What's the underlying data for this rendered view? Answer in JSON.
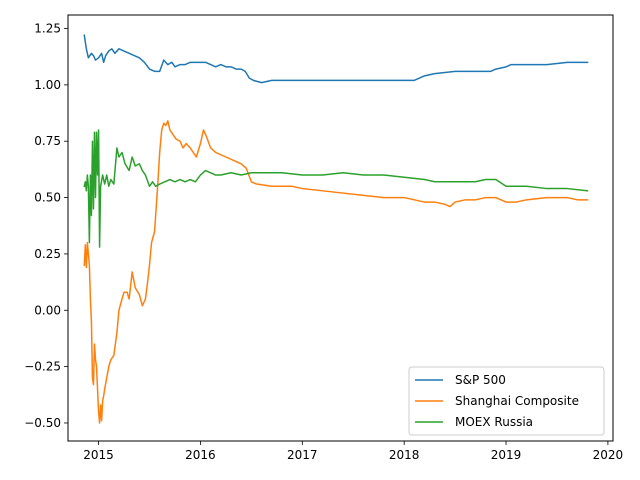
{
  "chart_data": {
    "type": "line",
    "title": "",
    "xlabel": "",
    "ylabel": "",
    "xlim": [
      2014.7,
      2020.05
    ],
    "ylim": [
      -0.58,
      1.31
    ],
    "x_ticks": [
      2015,
      2016,
      2017,
      2018,
      2019,
      2020
    ],
    "x_tick_labels": [
      "2015",
      "2016",
      "2017",
      "2018",
      "2019",
      "2020"
    ],
    "y_ticks": [
      -0.5,
      -0.25,
      0.0,
      0.25,
      0.5,
      0.75,
      1.0,
      1.25
    ],
    "y_tick_labels": [
      "−0.50",
      "−0.25",
      "0.00",
      "0.25",
      "0.50",
      "0.75",
      "1.00",
      "1.25"
    ],
    "grid": false,
    "legend_position": "lower-right",
    "series": [
      {
        "name": "S&P 500",
        "color": "#1f77b4",
        "points": [
          [
            2014.86,
            1.22
          ],
          [
            2014.88,
            1.16
          ],
          [
            2014.9,
            1.12
          ],
          [
            2014.93,
            1.14
          ],
          [
            2014.95,
            1.13
          ],
          [
            2014.97,
            1.11
          ],
          [
            2015.0,
            1.12
          ],
          [
            2015.03,
            1.14
          ],
          [
            2015.05,
            1.1
          ],
          [
            2015.07,
            1.13
          ],
          [
            2015.1,
            1.15
          ],
          [
            2015.13,
            1.16
          ],
          [
            2015.16,
            1.14
          ],
          [
            2015.2,
            1.16
          ],
          [
            2015.25,
            1.15
          ],
          [
            2015.3,
            1.14
          ],
          [
            2015.35,
            1.13
          ],
          [
            2015.4,
            1.12
          ],
          [
            2015.45,
            1.1
          ],
          [
            2015.5,
            1.07
          ],
          [
            2015.55,
            1.06
          ],
          [
            2015.6,
            1.06
          ],
          [
            2015.64,
            1.11
          ],
          [
            2015.68,
            1.09
          ],
          [
            2015.72,
            1.1
          ],
          [
            2015.75,
            1.08
          ],
          [
            2015.8,
            1.09
          ],
          [
            2015.85,
            1.09
          ],
          [
            2015.9,
            1.1
          ],
          [
            2015.95,
            1.1
          ],
          [
            2016.0,
            1.1
          ],
          [
            2016.05,
            1.1
          ],
          [
            2016.1,
            1.09
          ],
          [
            2016.15,
            1.08
          ],
          [
            2016.2,
            1.09
          ],
          [
            2016.25,
            1.08
          ],
          [
            2016.3,
            1.08
          ],
          [
            2016.35,
            1.07
          ],
          [
            2016.4,
            1.07
          ],
          [
            2016.44,
            1.06
          ],
          [
            2016.48,
            1.03
          ],
          [
            2016.52,
            1.02
          ],
          [
            2016.6,
            1.01
          ],
          [
            2016.7,
            1.02
          ],
          [
            2016.8,
            1.02
          ],
          [
            2017.0,
            1.02
          ],
          [
            2017.2,
            1.02
          ],
          [
            2017.4,
            1.02
          ],
          [
            2017.6,
            1.02
          ],
          [
            2017.8,
            1.02
          ],
          [
            2018.0,
            1.02
          ],
          [
            2018.1,
            1.02
          ],
          [
            2018.15,
            1.03
          ],
          [
            2018.2,
            1.04
          ],
          [
            2018.3,
            1.05
          ],
          [
            2018.5,
            1.06
          ],
          [
            2018.7,
            1.06
          ],
          [
            2018.85,
            1.06
          ],
          [
            2018.9,
            1.07
          ],
          [
            2019.0,
            1.08
          ],
          [
            2019.05,
            1.09
          ],
          [
            2019.2,
            1.09
          ],
          [
            2019.4,
            1.09
          ],
          [
            2019.6,
            1.1
          ],
          [
            2019.8,
            1.1
          ]
        ]
      },
      {
        "name": "Shanghai Composite",
        "color": "#ff7f0e",
        "points": [
          [
            2014.86,
            0.2
          ],
          [
            2014.87,
            0.29
          ],
          [
            2014.88,
            0.19
          ],
          [
            2014.89,
            0.3
          ],
          [
            2014.9,
            0.25
          ],
          [
            2014.91,
            0.2
          ],
          [
            2014.92,
            0.05
          ],
          [
            2014.93,
            -0.05
          ],
          [
            2014.94,
            -0.3
          ],
          [
            2014.95,
            -0.33
          ],
          [
            2014.96,
            -0.15
          ],
          [
            2014.97,
            -0.22
          ],
          [
            2014.98,
            -0.25
          ],
          [
            2015.0,
            -0.45
          ],
          [
            2015.01,
            -0.5
          ],
          [
            2015.02,
            -0.42
          ],
          [
            2015.03,
            -0.49
          ],
          [
            2015.04,
            -0.4
          ],
          [
            2015.05,
            -0.38
          ],
          [
            2015.06,
            -0.35
          ],
          [
            2015.08,
            -0.3
          ],
          [
            2015.1,
            -0.25
          ],
          [
            2015.12,
            -0.22
          ],
          [
            2015.15,
            -0.2
          ],
          [
            2015.18,
            -0.1
          ],
          [
            2015.2,
            0.0
          ],
          [
            2015.23,
            0.05
          ],
          [
            2015.25,
            0.08
          ],
          [
            2015.28,
            0.08
          ],
          [
            2015.3,
            0.05
          ],
          [
            2015.33,
            0.17
          ],
          [
            2015.36,
            0.1
          ],
          [
            2015.4,
            0.07
          ],
          [
            2015.43,
            0.02
          ],
          [
            2015.46,
            0.05
          ],
          [
            2015.48,
            0.12
          ],
          [
            2015.5,
            0.2
          ],
          [
            2015.52,
            0.3
          ],
          [
            2015.55,
            0.35
          ],
          [
            2015.58,
            0.55
          ],
          [
            2015.6,
            0.7
          ],
          [
            2015.62,
            0.8
          ],
          [
            2015.64,
            0.83
          ],
          [
            2015.66,
            0.82
          ],
          [
            2015.68,
            0.84
          ],
          [
            2015.7,
            0.8
          ],
          [
            2015.73,
            0.78
          ],
          [
            2015.76,
            0.76
          ],
          [
            2015.8,
            0.75
          ],
          [
            2015.83,
            0.72
          ],
          [
            2015.86,
            0.74
          ],
          [
            2015.9,
            0.72
          ],
          [
            2015.93,
            0.7
          ],
          [
            2015.96,
            0.68
          ],
          [
            2016.0,
            0.74
          ],
          [
            2016.03,
            0.8
          ],
          [
            2016.06,
            0.77
          ],
          [
            2016.1,
            0.72
          ],
          [
            2016.15,
            0.7
          ],
          [
            2016.2,
            0.69
          ],
          [
            2016.25,
            0.68
          ],
          [
            2016.3,
            0.67
          ],
          [
            2016.35,
            0.66
          ],
          [
            2016.4,
            0.65
          ],
          [
            2016.45,
            0.63
          ],
          [
            2016.5,
            0.57
          ],
          [
            2016.55,
            0.56
          ],
          [
            2016.7,
            0.55
          ],
          [
            2016.9,
            0.55
          ],
          [
            2017.0,
            0.54
          ],
          [
            2017.2,
            0.53
          ],
          [
            2017.4,
            0.52
          ],
          [
            2017.6,
            0.51
          ],
          [
            2017.8,
            0.5
          ],
          [
            2018.0,
            0.5
          ],
          [
            2018.1,
            0.49
          ],
          [
            2018.2,
            0.48
          ],
          [
            2018.3,
            0.48
          ],
          [
            2018.4,
            0.47
          ],
          [
            2018.45,
            0.46
          ],
          [
            2018.5,
            0.48
          ],
          [
            2018.6,
            0.49
          ],
          [
            2018.7,
            0.49
          ],
          [
            2018.8,
            0.5
          ],
          [
            2018.9,
            0.5
          ],
          [
            2019.0,
            0.48
          ],
          [
            2019.1,
            0.48
          ],
          [
            2019.2,
            0.49
          ],
          [
            2019.4,
            0.5
          ],
          [
            2019.6,
            0.5
          ],
          [
            2019.7,
            0.49
          ],
          [
            2019.8,
            0.49
          ]
        ]
      },
      {
        "name": "MOEX Russia",
        "color": "#2ca02c",
        "points": [
          [
            2014.86,
            0.55
          ],
          [
            2014.87,
            0.57
          ],
          [
            2014.88,
            0.53
          ],
          [
            2014.89,
            0.6
          ],
          [
            2014.9,
            0.55
          ],
          [
            2014.91,
            0.3
          ],
          [
            2014.92,
            0.6
          ],
          [
            2014.93,
            0.42
          ],
          [
            2014.94,
            0.75
          ],
          [
            2014.95,
            0.45
          ],
          [
            2014.96,
            0.79
          ],
          [
            2014.97,
            0.5
          ],
          [
            2014.98,
            0.79
          ],
          [
            2014.99,
            0.6
          ],
          [
            2015.0,
            0.8
          ],
          [
            2015.01,
            0.28
          ],
          [
            2015.02,
            0.55
          ],
          [
            2015.04,
            0.6
          ],
          [
            2015.06,
            0.56
          ],
          [
            2015.08,
            0.6
          ],
          [
            2015.1,
            0.55
          ],
          [
            2015.12,
            0.58
          ],
          [
            2015.15,
            0.56
          ],
          [
            2015.18,
            0.72
          ],
          [
            2015.2,
            0.68
          ],
          [
            2015.23,
            0.7
          ],
          [
            2015.26,
            0.65
          ],
          [
            2015.3,
            0.62
          ],
          [
            2015.33,
            0.68
          ],
          [
            2015.36,
            0.64
          ],
          [
            2015.4,
            0.65
          ],
          [
            2015.43,
            0.62
          ],
          [
            2015.46,
            0.6
          ],
          [
            2015.5,
            0.55
          ],
          [
            2015.53,
            0.57
          ],
          [
            2015.56,
            0.55
          ],
          [
            2015.6,
            0.56
          ],
          [
            2015.65,
            0.57
          ],
          [
            2015.7,
            0.58
          ],
          [
            2015.75,
            0.57
          ],
          [
            2015.8,
            0.58
          ],
          [
            2015.85,
            0.57
          ],
          [
            2015.9,
            0.58
          ],
          [
            2015.95,
            0.57
          ],
          [
            2016.0,
            0.6
          ],
          [
            2016.05,
            0.62
          ],
          [
            2016.1,
            0.61
          ],
          [
            2016.15,
            0.6
          ],
          [
            2016.2,
            0.6
          ],
          [
            2016.3,
            0.61
          ],
          [
            2016.4,
            0.6
          ],
          [
            2016.5,
            0.61
          ],
          [
            2016.6,
            0.61
          ],
          [
            2016.8,
            0.61
          ],
          [
            2017.0,
            0.6
          ],
          [
            2017.2,
            0.6
          ],
          [
            2017.4,
            0.61
          ],
          [
            2017.6,
            0.6
          ],
          [
            2017.8,
            0.6
          ],
          [
            2018.0,
            0.59
          ],
          [
            2018.2,
            0.58
          ],
          [
            2018.3,
            0.57
          ],
          [
            2018.5,
            0.57
          ],
          [
            2018.7,
            0.57
          ],
          [
            2018.8,
            0.58
          ],
          [
            2018.9,
            0.58
          ],
          [
            2019.0,
            0.55
          ],
          [
            2019.05,
            0.55
          ],
          [
            2019.2,
            0.55
          ],
          [
            2019.4,
            0.54
          ],
          [
            2019.6,
            0.54
          ],
          [
            2019.8,
            0.53
          ]
        ]
      }
    ]
  }
}
